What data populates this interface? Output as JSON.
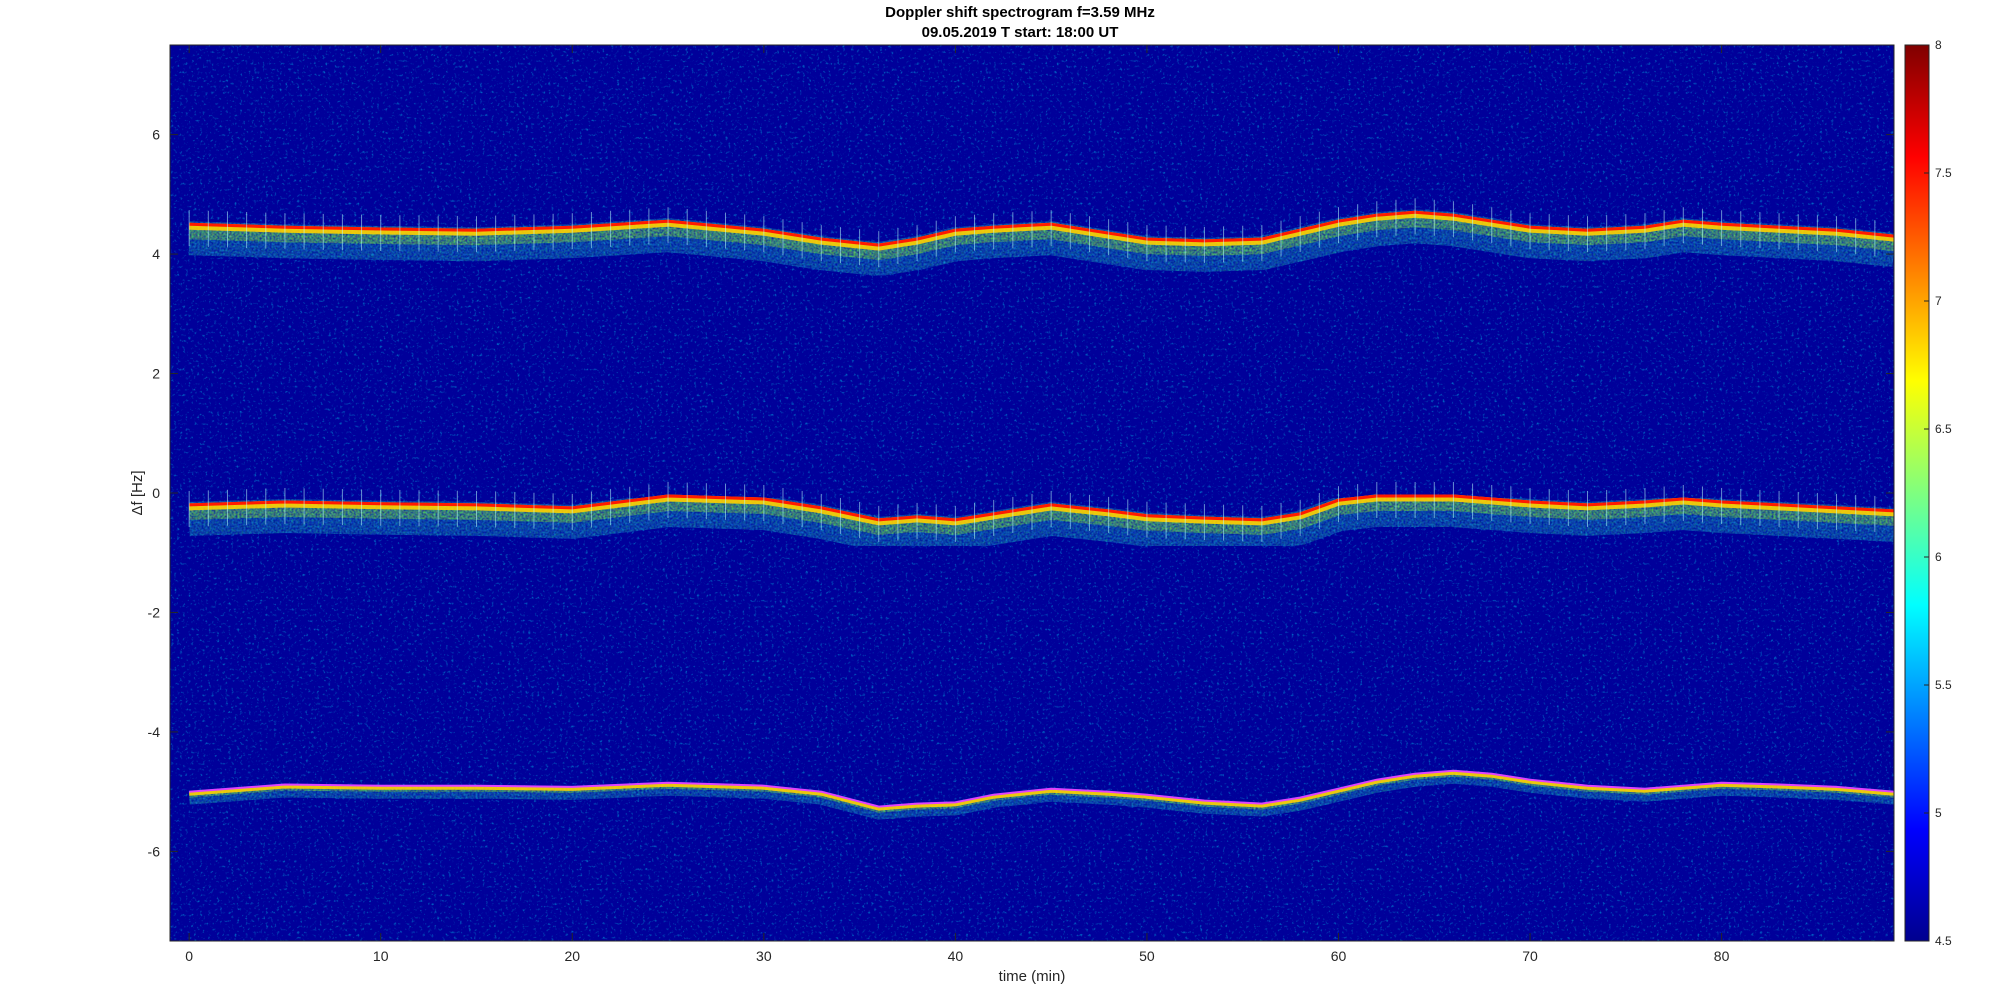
{
  "chart_data": {
    "type": "heatmap",
    "title": "Doppler shift spectrogram f=3.59 MHz",
    "subtitle": "09.05.2019   T start: 18:00 UT",
    "xlabel": "time (min)",
    "ylabel": "Δf [Hz]",
    "xlim": [
      -1,
      89
    ],
    "ylim": [
      -7.5,
      7.5
    ],
    "xticks": [
      0,
      10,
      20,
      30,
      40,
      50,
      60,
      70,
      80
    ],
    "yticks": [
      -6,
      -4,
      -2,
      0,
      2,
      4,
      6
    ],
    "colorbar": {
      "range": [
        4.5,
        8
      ],
      "ticks": [
        4.5,
        5,
        5.5,
        6,
        6.5,
        7,
        7.5,
        8
      ],
      "colormap": "jet"
    },
    "grid": false,
    "series": [
      {
        "t": [
          0,
          5,
          10,
          15,
          20,
          25,
          30,
          33,
          36,
          38,
          40,
          42,
          45,
          48,
          50,
          53,
          56,
          58,
          60,
          62,
          64,
          66,
          68,
          70,
          73,
          76,
          78,
          80,
          83,
          86,
          89
        ],
        "df": [
          4.5,
          4.45,
          4.42,
          4.4,
          4.45,
          4.55,
          4.4,
          4.25,
          4.15,
          4.25,
          4.4,
          4.45,
          4.5,
          4.35,
          4.25,
          4.22,
          4.25,
          4.4,
          4.55,
          4.65,
          4.7,
          4.65,
          4.55,
          4.45,
          4.4,
          4.45,
          4.55,
          4.5,
          4.45,
          4.4,
          4.3
        ]
      },
      {
        "t": [
          0,
          5,
          10,
          15,
          20,
          25,
          30,
          33,
          36,
          38,
          40,
          42,
          45,
          48,
          50,
          53,
          56,
          58,
          60,
          62,
          64,
          66,
          68,
          70,
          73,
          76,
          78,
          80,
          83,
          86,
          89
        ],
        "df": [
          -0.2,
          -0.15,
          -0.18,
          -0.2,
          -0.25,
          -0.05,
          -0.1,
          -0.25,
          -0.45,
          -0.4,
          -0.45,
          -0.35,
          -0.2,
          -0.3,
          -0.38,
          -0.42,
          -0.45,
          -0.35,
          -0.12,
          -0.05,
          -0.05,
          -0.05,
          -0.1,
          -0.15,
          -0.2,
          -0.15,
          -0.1,
          -0.15,
          -0.2,
          -0.25,
          -0.3
        ]
      },
      {
        "t": [
          0,
          5,
          10,
          15,
          20,
          25,
          30,
          33,
          36,
          38,
          40,
          42,
          45,
          48,
          50,
          53,
          56,
          58,
          60,
          62,
          64,
          66,
          68,
          70,
          73,
          76,
          78,
          80,
          83,
          86,
          89
        ],
        "df": [
          -5.0,
          -4.88,
          -4.9,
          -4.9,
          -4.92,
          -4.85,
          -4.9,
          -5.0,
          -5.25,
          -5.2,
          -5.18,
          -5.05,
          -4.95,
          -5.0,
          -5.05,
          -5.15,
          -5.2,
          -5.1,
          -4.95,
          -4.8,
          -4.7,
          -4.65,
          -4.7,
          -4.8,
          -4.9,
          -4.95,
          -4.9,
          -4.85,
          -4.88,
          -4.92,
          -5.0
        ]
      }
    ]
  }
}
